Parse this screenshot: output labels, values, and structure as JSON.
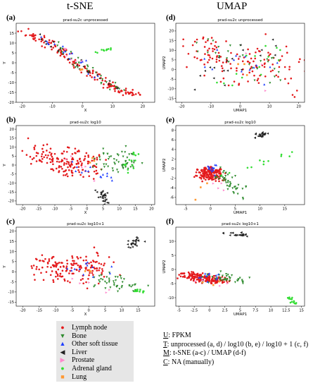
{
  "column_titles": {
    "left": "t-SNE",
    "right": "UMAP"
  },
  "legend": {
    "items": [
      {
        "label": "Lymph node",
        "color": "#e41a1c",
        "marker": "circle"
      },
      {
        "label": "Bone",
        "color": "#2e8b2e",
        "marker": "triangle-down"
      },
      {
        "label": "Other soft tissue",
        "color": "#1f3fff",
        "marker": "triangle-up"
      },
      {
        "label": "Liver",
        "color": "#222222",
        "marker": "triangle-left"
      },
      {
        "label": "Prostate",
        "color": "#ff88cc",
        "marker": "triangle-right"
      },
      {
        "label": "Adrenal gland",
        "color": "#33dd33",
        "marker": "circle"
      },
      {
        "label": "Lung",
        "color": "#ff9933",
        "marker": "square"
      }
    ]
  },
  "notes": {
    "u": {
      "key": "U",
      "text": ": FPKM"
    },
    "t": {
      "key": "T",
      "text": ": unprocessed (a, d) / log10 (b, e) / log10 + 1 (c, f)"
    },
    "m": {
      "key": "M",
      "text": ": t-SNE (a-c) / UMAP (d-f)"
    },
    "c": {
      "key": "C",
      "text": ": NA (manually)"
    }
  },
  "chart_data": [
    {
      "panel": "(a)",
      "type": "scatter",
      "title": "prad-su2c unprocessed",
      "xlabel": "X",
      "ylabel": "Y",
      "xlim": [
        -22,
        24
      ],
      "ylim": [
        -20,
        20
      ],
      "xticks": [
        -20,
        -10,
        0,
        10,
        20
      ],
      "yticks": [
        -20,
        -15,
        -10,
        -5,
        0,
        5,
        10,
        15
      ],
      "clusters": [
        {
          "category": "Lymph node",
          "n": 150,
          "path": [
            [
              -19,
              15
            ],
            [
              -12,
              11
            ],
            [
              -7,
              5
            ],
            [
              -1,
              -1
            ],
            [
              5,
              -7
            ],
            [
              11,
              -13
            ],
            [
              18,
              -17
            ]
          ],
          "spread": [
            2.2,
            2.0
          ]
        },
        {
          "category": "Bone",
          "n": 35,
          "path": [
            [
              -10,
              11
            ],
            [
              -2,
              0
            ],
            [
              8,
              -10
            ],
            [
              16,
              -17
            ]
          ],
          "spread": [
            2.5,
            2.0
          ]
        },
        {
          "category": "Other soft tissue",
          "n": 18,
          "path": [
            [
              -13,
              12
            ],
            [
              -3,
              3
            ],
            [
              6,
              -8
            ]
          ],
          "spread": [
            2.0,
            2.0
          ]
        },
        {
          "category": "Liver",
          "n": 22,
          "path": [
            [
              -14,
              13
            ],
            [
              -6,
              5
            ],
            [
              4,
              -6
            ],
            [
              13,
              -15
            ]
          ],
          "spread": [
            2.0,
            2.0
          ]
        },
        {
          "category": "Adrenal gland",
          "n": 12,
          "path": [
            [
              5,
              5
            ],
            [
              10,
              7
            ]
          ],
          "spread": [
            1.5,
            1.0
          ]
        },
        {
          "category": "Prostate",
          "n": 6,
          "path": [
            [
              -8,
              8
            ],
            [
              10,
              -12
            ]
          ],
          "spread": [
            2.0,
            2.0
          ]
        },
        {
          "category": "Lung",
          "n": 3,
          "path": [
            [
              -2,
              -2
            ],
            [
              0,
              -4
            ]
          ],
          "spread": [
            1.0,
            1.0
          ]
        }
      ]
    },
    {
      "panel": "(b)",
      "type": "scatter",
      "title": "prad-su2c log10",
      "xlabel": "X",
      "ylabel": "Y",
      "xlim": [
        -22,
        21
      ],
      "ylim": [
        -22,
        22
      ],
      "xticks": [
        -20,
        -15,
        -10,
        -5,
        0,
        5,
        10,
        15,
        20
      ],
      "yticks": [
        -20,
        -15,
        -10,
        -5,
        0,
        5,
        10,
        15,
        20
      ],
      "clusters": [
        {
          "category": "Lymph node",
          "n": 160,
          "path": [
            [
              -17,
              6
            ],
            [
              -10,
              3
            ],
            [
              -4,
              -1
            ],
            [
              2,
              2
            ]
          ],
          "spread": [
            5.0,
            8.0
          ]
        },
        {
          "category": "Bone",
          "n": 55,
          "path": [
            [
              4,
              3
            ],
            [
              10,
              0
            ],
            [
              16,
              5
            ]
          ],
          "spread": [
            4.0,
            6.0
          ]
        },
        {
          "category": "Other soft tissue",
          "n": 14,
          "path": [
            [
              -5,
              0
            ],
            [
              6,
              -6
            ]
          ],
          "spread": [
            4.0,
            4.0
          ]
        },
        {
          "category": "Liver",
          "n": 28,
          "path": [
            [
              4,
              -14
            ],
            [
              6,
              -20
            ]
          ],
          "spread": [
            1.6,
            2.5
          ]
        },
        {
          "category": "Adrenal gland",
          "n": 15,
          "path": [
            [
              12,
              -3
            ],
            [
              15,
              6
            ]
          ],
          "spread": [
            2.0,
            3.0
          ]
        },
        {
          "category": "Prostate",
          "n": 5,
          "path": [
            [
              -6,
              5
            ],
            [
              3,
              -8
            ]
          ],
          "spread": [
            3.0,
            3.0
          ]
        },
        {
          "category": "Lung",
          "n": 3,
          "path": [
            [
              0,
              0
            ],
            [
              2,
              3
            ]
          ],
          "spread": [
            2.0,
            2.0
          ]
        }
      ]
    },
    {
      "panel": "(c)",
      "type": "scatter",
      "title": "prad-su2c log10+1",
      "xlabel": "X",
      "ylabel": "Y",
      "xlim": [
        -22,
        20
      ],
      "ylim": [
        -17,
        22
      ],
      "xticks": [
        -20,
        -15,
        -10,
        -5,
        0,
        5,
        10,
        15
      ],
      "yticks": [
        -15,
        -10,
        -5,
        0,
        5,
        10,
        15,
        20
      ],
      "clusters": [
        {
          "category": "Lymph node",
          "n": 160,
          "path": [
            [
              -15,
              2
            ],
            [
              -8,
              1
            ],
            [
              -1,
              1
            ],
            [
              4,
              4
            ]
          ],
          "spread": [
            5.0,
            7.0
          ]
        },
        {
          "category": "Bone",
          "n": 45,
          "path": [
            [
              3,
              -2
            ],
            [
              9,
              -6
            ],
            [
              15,
              -9
            ]
          ],
          "spread": [
            3.5,
            4.0
          ]
        },
        {
          "category": "Other soft tissue",
          "n": 12,
          "path": [
            [
              -4,
              0
            ],
            [
              5,
              4
            ]
          ],
          "spread": [
            4.0,
            4.0
          ]
        },
        {
          "category": "Liver",
          "n": 26,
          "path": [
            [
              12,
              13
            ],
            [
              16,
              17
            ]
          ],
          "spread": [
            1.8,
            2.2
          ]
        },
        {
          "category": "Adrenal gland",
          "n": 12,
          "path": [
            [
              14,
              -9
            ],
            [
              16,
              -10
            ]
          ],
          "spread": [
            1.5,
            1.0
          ]
        },
        {
          "category": "Prostate",
          "n": 5,
          "path": [
            [
              -5,
              -4
            ],
            [
              6,
              -10
            ]
          ],
          "spread": [
            3.0,
            3.0
          ]
        },
        {
          "category": "Lung",
          "n": 3,
          "path": [
            [
              -1,
              -1
            ],
            [
              2,
              0
            ]
          ],
          "spread": [
            2.0,
            2.0
          ]
        }
      ]
    },
    {
      "panel": "(d)",
      "type": "scatter",
      "title": "prad-su2c unprocessed",
      "xlabel": "UMAP1",
      "ylabel": "UMAP2",
      "xlim": [
        -22,
        22
      ],
      "ylim": [
        -17,
        24
      ],
      "xticks": [
        -20,
        -10,
        0,
        10,
        20
      ],
      "yticks": [
        -15,
        -10,
        -5,
        0,
        5,
        10,
        15,
        20
      ],
      "clusters": [
        {
          "category": "Lymph node",
          "n": 130,
          "path": [
            [
              -18,
              12
            ],
            [
              -8,
              6
            ],
            [
              0,
              -4
            ],
            [
              10,
              10
            ],
            [
              18,
              -8
            ]
          ],
          "spread": [
            9.0,
            9.0
          ]
        },
        {
          "category": "Bone",
          "n": 30,
          "path": [
            [
              -10,
              12
            ],
            [
              5,
              6
            ],
            [
              12,
              -4
            ]
          ],
          "spread": [
            8.0,
            8.0
          ]
        },
        {
          "category": "Other soft tissue",
          "n": 14,
          "path": [
            [
              -12,
              8
            ],
            [
              8,
              0
            ]
          ],
          "spread": [
            8.0,
            8.0
          ]
        },
        {
          "category": "Liver",
          "n": 20,
          "path": [
            [
              -14,
              -6
            ],
            [
              2,
              14
            ],
            [
              14,
              8
            ]
          ],
          "spread": [
            8.0,
            8.0
          ]
        },
        {
          "category": "Adrenal gland",
          "n": 14,
          "path": [
            [
              -6,
              -10
            ],
            [
              6,
              4
            ],
            [
              16,
              14
            ]
          ],
          "spread": [
            7.0,
            7.0
          ]
        },
        {
          "category": "Prostate",
          "n": 4,
          "path": [
            [
              -2,
              10
            ],
            [
              10,
              -10
            ]
          ],
          "spread": [
            5.0,
            5.0
          ]
        },
        {
          "category": "Lung",
          "n": 3,
          "path": [
            [
              0,
              0
            ],
            [
              3,
              5
            ]
          ],
          "spread": [
            4.0,
            4.0
          ]
        }
      ]
    },
    {
      "panel": "(e)",
      "type": "scatter",
      "title": "prad-su2c log10",
      "xlabel": "UMAP1",
      "ylabel": "UMAP2",
      "xlim": [
        -7,
        19
      ],
      "ylim": [
        -7.5,
        9
      ],
      "xticks": [
        -5,
        0,
        5,
        10,
        15
      ],
      "yticks": [
        -6,
        -4,
        -2,
        0,
        2,
        4,
        6,
        8
      ],
      "clusters": [
        {
          "category": "Lymph node",
          "n": 160,
          "path": [
            [
              -2,
              -1
            ],
            [
              0,
              -1
            ],
            [
              2,
              -1.5
            ]
          ],
          "spread": [
            1.5,
            1.5
          ]
        },
        {
          "category": "Bone",
          "n": 45,
          "path": [
            [
              1,
              0
            ],
            [
              4,
              -3
            ],
            [
              6,
              -5
            ]
          ],
          "spread": [
            1.8,
            1.4
          ]
        },
        {
          "category": "Other soft tissue",
          "n": 14,
          "path": [
            [
              0,
              0
            ],
            [
              1,
              -1
            ]
          ],
          "spread": [
            1.5,
            1.5
          ]
        },
        {
          "category": "Liver",
          "n": 24,
          "path": [
            [
              9,
              6.5
            ],
            [
              11,
              7.5
            ]
          ],
          "spread": [
            0.8,
            0.6
          ]
        },
        {
          "category": "Adrenal gland",
          "n": 12,
          "path": [
            [
              3,
              -1
            ],
            [
              17,
              3
            ]
          ],
          "spread": [
            1.2,
            1.2
          ]
        },
        {
          "category": "Prostate",
          "n": 4,
          "path": [
            [
              -1,
              -2
            ],
            [
              4,
              -4
            ]
          ],
          "spread": [
            1.5,
            1.5
          ]
        },
        {
          "category": "Lung",
          "n": 3,
          "path": [
            [
              -4,
              -6
            ],
            [
              1,
              -2
            ]
          ],
          "spread": [
            1.0,
            1.0
          ]
        }
      ]
    },
    {
      "panel": "(f)",
      "type": "scatter",
      "title": "prad-su2c log10+1",
      "xlabel": "UMAP1",
      "ylabel": "UMAP2",
      "xlim": [
        -5.5,
        15.5
      ],
      "ylim": [
        -13,
        15
      ],
      "xticks": [
        -5.0,
        -2.5,
        0.0,
        2.5,
        5.0,
        7.5,
        10.0,
        12.5,
        15.0
      ],
      "yticks": [
        -10,
        -5,
        0,
        5,
        10
      ],
      "clusters": [
        {
          "category": "Lymph node",
          "n": 170,
          "path": [
            [
              -4,
              -2
            ],
            [
              -1,
              -3
            ],
            [
              2,
              -4
            ]
          ],
          "spread": [
            1.6,
            1.6
          ]
        },
        {
          "category": "Bone",
          "n": 40,
          "path": [
            [
              0,
              -3
            ],
            [
              3,
              -3
            ],
            [
              6,
              -4
            ]
          ],
          "spread": [
            1.6,
            1.6
          ]
        },
        {
          "category": "Other soft tissue",
          "n": 12,
          "path": [
            [
              -2,
              -3
            ],
            [
              1,
              -2
            ]
          ],
          "spread": [
            1.5,
            1.5
          ]
        },
        {
          "category": "Liver",
          "n": 24,
          "path": [
            [
              3,
              13
            ],
            [
              6,
              12
            ]
          ],
          "spread": [
            1.2,
            0.8
          ]
        },
        {
          "category": "Adrenal gland",
          "n": 14,
          "path": [
            [
              13,
              -10
            ],
            [
              14,
              -12
            ]
          ],
          "spread": [
            0.6,
            0.8
          ]
        },
        {
          "category": "Prostate",
          "n": 4,
          "path": [
            [
              -3,
              -4
            ],
            [
              4,
              -5
            ]
          ],
          "spread": [
            1.5,
            1.5
          ]
        },
        {
          "category": "Lung",
          "n": 3,
          "path": [
            [
              -1,
              -4
            ],
            [
              2,
              -5
            ]
          ],
          "spread": [
            1.0,
            1.0
          ]
        }
      ]
    }
  ]
}
